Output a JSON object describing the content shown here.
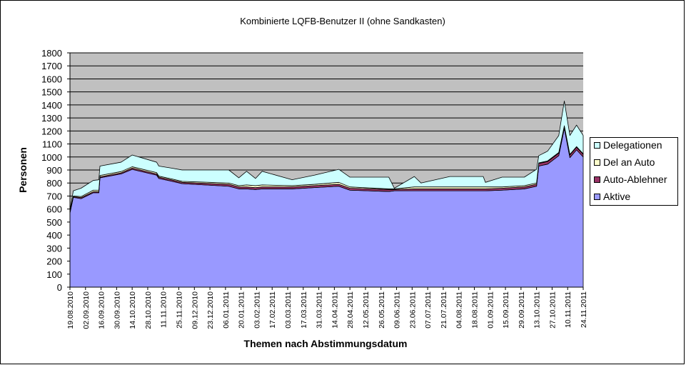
{
  "chart_data": {
    "type": "area",
    "stacked": true,
    "title": "Kombinierte LQFB-Benutzer II (ohne Sandkasten)",
    "xlabel": "Themen nach Abstimmungsdatum",
    "ylabel": "Personen",
    "ylim": [
      0,
      1800
    ],
    "ytick_step": 100,
    "yticks": [
      "0",
      "100",
      "200",
      "300",
      "400",
      "500",
      "600",
      "700",
      "800",
      "900",
      "1000",
      "1100",
      "1200",
      "1300",
      "1400",
      "1500",
      "1600",
      "1700",
      "1800"
    ],
    "xlim": [
      "2010-08-19",
      "2011-11-24"
    ],
    "xtick_labels": [
      "19.08.2010",
      "02.09.2010",
      "16.09.2010",
      "30.09.2010",
      "14.10.2010",
      "28.10.2010",
      "11.11.2010",
      "25.11.2010",
      "09.12.2010",
      "23.12.2010",
      "06.01.2011",
      "20.01.2011",
      "03.02.2011",
      "17.02.2011",
      "03.03.2011",
      "17.03.2011",
      "31.03.2011",
      "14.04.2011",
      "28.04.2011",
      "12.05.2011",
      "26.05.2011",
      "09.06.2011",
      "23.06.2011",
      "07.07.2011",
      "21.07.2011",
      "04.08.2011",
      "18.08.2011",
      "01.09.2011",
      "15.09.2011",
      "29.09.2011",
      "13.10.2011",
      "27.10.2011",
      "10.11.2011",
      "24.11.2011"
    ],
    "grid": true,
    "legend_position": "right",
    "plot_background": "#C0C0C0",
    "x": [
      "2010-08-19",
      "2010-08-22",
      "2010-08-29",
      "2010-09-09",
      "2010-09-14",
      "2010-09-15",
      "2010-10-04",
      "2010-10-14",
      "2010-11-05",
      "2010-11-07",
      "2010-11-18",
      "2010-11-28",
      "2011-01-09",
      "2011-01-18",
      "2011-01-25",
      "2011-02-02",
      "2011-02-08",
      "2011-03-07",
      "2011-03-27",
      "2011-04-18",
      "2011-04-28",
      "2011-06-02",
      "2011-06-07",
      "2011-06-25",
      "2011-07-01",
      "2011-07-27",
      "2011-08-26",
      "2011-08-28",
      "2011-09-12",
      "2011-10-02",
      "2011-10-13",
      "2011-10-15",
      "2011-10-23",
      "2011-11-02",
      "2011-11-07",
      "2011-11-12",
      "2011-11-18",
      "2011-11-24"
    ],
    "series": [
      {
        "name": "Aktive",
        "color": "#9999FF",
        "values": [
          570,
          690,
          680,
          725,
          725,
          840,
          870,
          905,
          860,
          835,
          815,
          795,
          775,
          755,
          755,
          750,
          755,
          755,
          765,
          775,
          745,
          735,
          740,
          740,
          740,
          740,
          740,
          740,
          745,
          755,
          775,
          930,
          945,
          1010,
          1220,
          995,
          1055,
          1000
        ]
      },
      {
        "name": "Auto-Ablehner",
        "color": "#993366",
        "values": [
          5,
          5,
          8,
          8,
          8,
          8,
          8,
          10,
          10,
          10,
          10,
          10,
          15,
          15,
          15,
          15,
          15,
          15,
          15,
          15,
          15,
          15,
          10,
          15,
          15,
          15,
          15,
          15,
          15,
          15,
          15,
          20,
          20,
          20,
          15,
          20,
          20,
          20
        ]
      },
      {
        "name": "Del an Auto",
        "color": "#FFFFCC",
        "values": [
          5,
          5,
          8,
          12,
          12,
          10,
          10,
          10,
          10,
          8,
          8,
          8,
          10,
          10,
          15,
          15,
          15,
          10,
          10,
          15,
          10,
          5,
          5,
          15,
          15,
          15,
          15,
          15,
          10,
          10,
          10,
          5,
          5,
          5,
          5,
          5,
          5,
          5
        ]
      },
      {
        "name": "Delegationen",
        "color": "#CCFFFF",
        "values": [
          10,
          40,
          64,
          75,
          80,
          72,
          72,
          90,
          80,
          77,
          82,
          87,
          100,
          60,
          105,
          55,
          105,
          45,
          70,
          100,
          75,
          90,
          5,
          80,
          30,
          80,
          80,
          35,
          75,
          65,
          105,
          55,
          75,
          130,
          190,
          145,
          165,
          140
        ]
      }
    ]
  }
}
